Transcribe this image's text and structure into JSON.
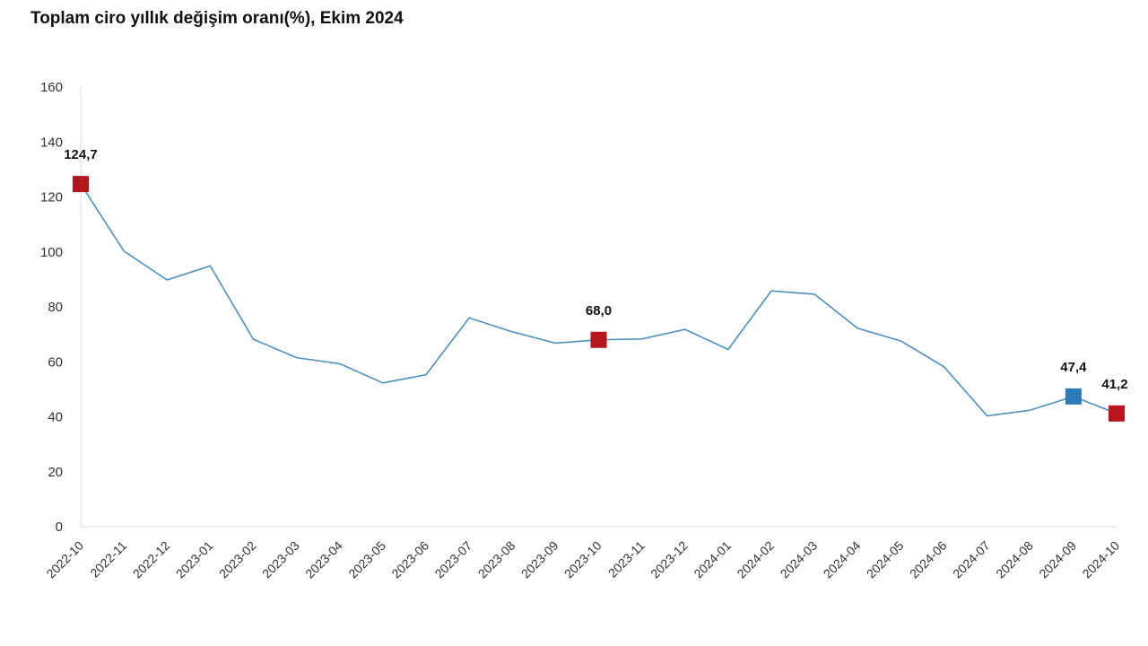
{
  "chart_data": {
    "type": "line",
    "title": "Toplam ciro yıllık değişim oranı(%), Ekim 2024",
    "xlabel": "",
    "ylabel": "",
    "ylim": [
      0,
      160
    ],
    "yticks": [
      0,
      20,
      40,
      60,
      80,
      100,
      120,
      140,
      160
    ],
    "grid": false,
    "categories": [
      "2022-10",
      "2022-11",
      "2022-12",
      "2023-01",
      "2023-02",
      "2023-03",
      "2023-04",
      "2023-05",
      "2023-06",
      "2023-07",
      "2023-08",
      "2023-09",
      "2023-10",
      "2023-11",
      "2023-12",
      "2024-01",
      "2024-02",
      "2024-03",
      "2024-04",
      "2024-05",
      "2024-06",
      "2024-07",
      "2024-08",
      "2024-09",
      "2024-10"
    ],
    "series": [
      {
        "values": [
          124.7,
          100.3,
          89.8,
          94.9,
          68.2,
          61.5,
          59.3,
          52.3,
          55.3,
          76.0,
          70.9,
          66.8,
          68.0,
          68.3,
          71.8,
          64.5,
          85.8,
          84.6,
          72.2,
          67.6,
          58.2,
          40.3,
          42.4,
          47.4,
          41.2
        ],
        "color": "#4a90c2"
      }
    ],
    "highlighted_points": [
      {
        "index": 0,
        "label": "124,7",
        "color": "#b5161c"
      },
      {
        "index": 12,
        "label": "68,0",
        "color": "#b5161c"
      },
      {
        "index": 23,
        "label": "47,4",
        "color": "#2e7ab8"
      },
      {
        "index": 24,
        "label": "41,2",
        "color": "#b5161c"
      }
    ]
  }
}
